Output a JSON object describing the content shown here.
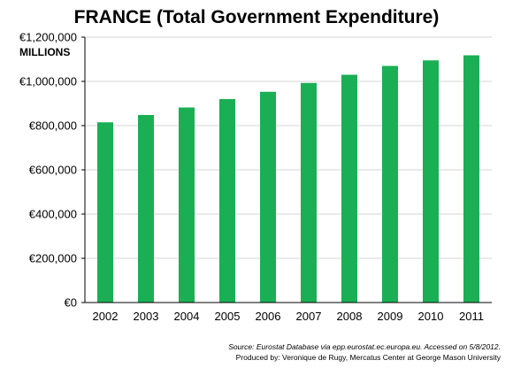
{
  "chart_data": {
    "type": "bar",
    "title": "FRANCE (Total Government Expenditure)",
    "ylabel": "MILLIONS",
    "xlabel": "",
    "categories": [
      "2002",
      "2003",
      "2004",
      "2005",
      "2006",
      "2007",
      "2008",
      "2009",
      "2010",
      "2011"
    ],
    "values": [
      815000,
      848000,
      882000,
      920000,
      953000,
      993000,
      1030000,
      1070000,
      1095000,
      1118000
    ],
    "ylim": [
      0,
      1200000
    ],
    "yticks": [
      0,
      200000,
      400000,
      600000,
      800000,
      1000000,
      1200000
    ],
    "ytick_labels": [
      "€0",
      "€200,000",
      "€400,000",
      "€600,000",
      "€800,000",
      "€1,000,000",
      "€1,200,000"
    ],
    "bar_color": "#1aaf54",
    "grid": true,
    "legend": "none"
  },
  "footer": {
    "source": "Source: Eurostat Database via epp.eurostat.ec.europa.eu. Accessed on 5/8/2012.",
    "produced_by": "Produced by: Veronique de Rugy, Mercatus Center at George Mason University"
  }
}
